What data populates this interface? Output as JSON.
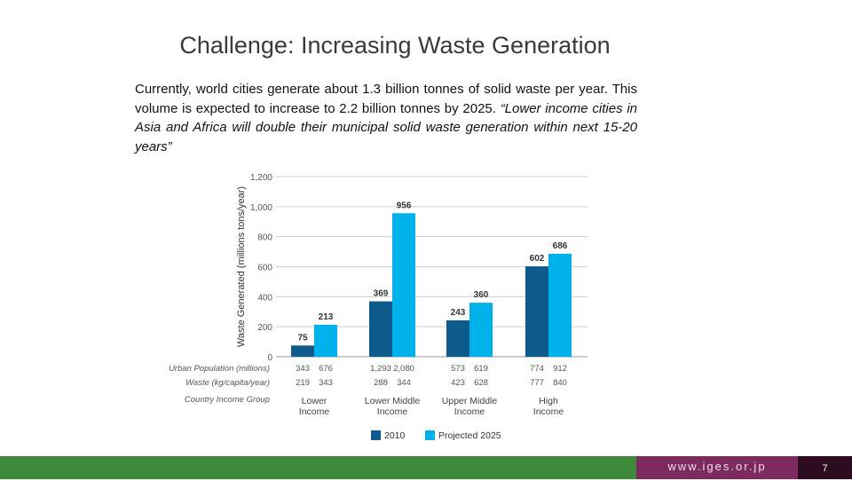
{
  "slide": {
    "title": "Challenge: Increasing Waste Generation",
    "body": "Currently, world cities generate about 1.3 billion tonnes of solid waste per year. This volume is expected to increase to 2.2 billion tonnes by 2025.",
    "quote": "“Lower income cities in Asia and Africa will double their municipal solid waste generation within next 15-20 years”"
  },
  "chart_data": {
    "type": "bar",
    "ylabel": "Waste Generated (millions tons/year)",
    "ylim": [
      0,
      1200
    ],
    "yticks": [
      "0",
      "200",
      "400",
      "600",
      "800",
      "1,000",
      "1,200"
    ],
    "grid": true,
    "categories": [
      "Lower Income",
      "Lower Middle Income",
      "Upper Middle Income",
      "High Income"
    ],
    "category_lines": [
      [
        "Lower",
        "Income"
      ],
      [
        "Lower Middle",
        "Income"
      ],
      [
        "Upper Middle",
        "Income"
      ],
      [
        "High",
        "Income"
      ]
    ],
    "series": [
      {
        "name": "2010",
        "color": "#0e5a8a",
        "values": [
          75,
          369,
          243,
          602
        ]
      },
      {
        "name": "Projected 2025",
        "color": "#00b2ea",
        "values": [
          213,
          956,
          360,
          686
        ]
      }
    ],
    "value_labels": [
      [
        "75",
        "369",
        "243",
        "602"
      ],
      [
        "213",
        "956",
        "360",
        "686"
      ]
    ],
    "table_rows": [
      {
        "label": "Urban Population (millions)",
        "values": [
          [
            "343",
            "676"
          ],
          [
            "1,293",
            "2,080"
          ],
          [
            "573",
            "619"
          ],
          [
            "774",
            "912"
          ]
        ]
      },
      {
        "label": "Waste (kg/capita/year)",
        "values": [
          [
            "219",
            "343"
          ],
          [
            "288",
            "344"
          ],
          [
            "423",
            "628"
          ],
          [
            "777",
            "840"
          ]
        ]
      }
    ],
    "group_label": "Country Income Group",
    "legend_position": "bottom"
  },
  "footer": {
    "url": "www.iges.or.jp",
    "page": "7"
  }
}
